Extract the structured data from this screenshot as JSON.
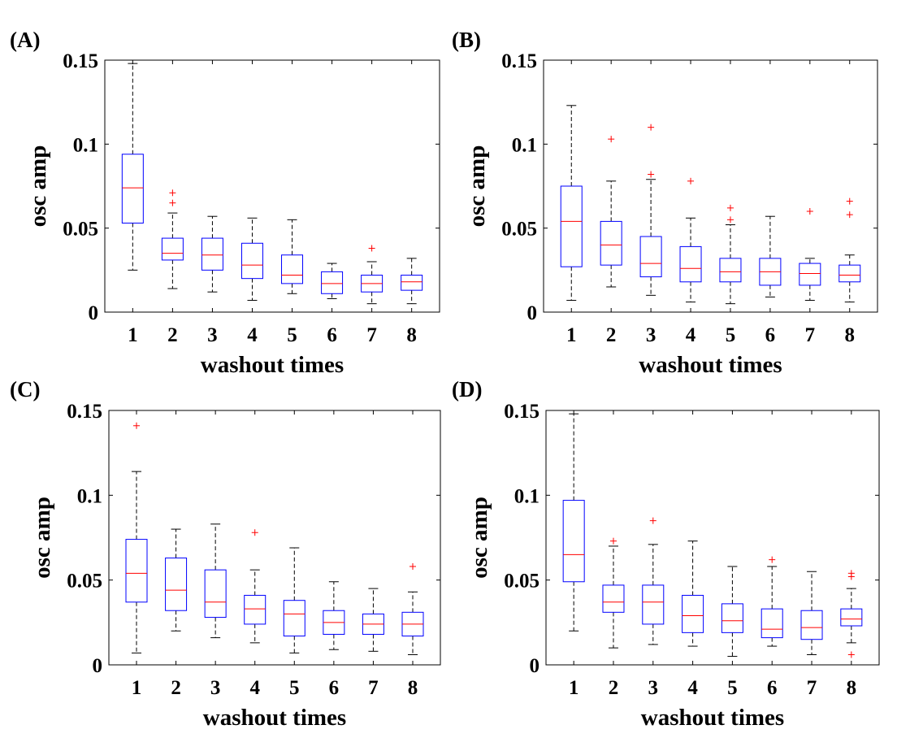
{
  "colors": {
    "box": "#0000ff",
    "median": "#ff0000",
    "outlier": "#ff0000",
    "whisker": "#000000",
    "axes": "#000000"
  },
  "chart_data": [
    {
      "type": "boxplot",
      "panel_label": "(A)",
      "xlabel": "washout times",
      "ylabel": "osc amp",
      "categories": [
        "1",
        "2",
        "3",
        "4",
        "5",
        "6",
        "7",
        "8"
      ],
      "ylim": [
        0,
        0.15
      ],
      "yticks": [
        0,
        0.05,
        0.1,
        0.15
      ],
      "ytick_labels": [
        "0",
        "0.05",
        "0.1",
        "0.15"
      ],
      "boxes": [
        {
          "lower_whisker": 0.025,
          "q1": 0.053,
          "median": 0.074,
          "q3": 0.094,
          "upper_whisker": 0.148,
          "outliers": []
        },
        {
          "lower_whisker": 0.014,
          "q1": 0.031,
          "median": 0.035,
          "q3": 0.044,
          "upper_whisker": 0.059,
          "outliers": [
            0.065,
            0.071
          ]
        },
        {
          "lower_whisker": 0.012,
          "q1": 0.025,
          "median": 0.034,
          "q3": 0.044,
          "upper_whisker": 0.057,
          "outliers": []
        },
        {
          "lower_whisker": 0.007,
          "q1": 0.02,
          "median": 0.028,
          "q3": 0.041,
          "upper_whisker": 0.056,
          "outliers": []
        },
        {
          "lower_whisker": 0.011,
          "q1": 0.017,
          "median": 0.022,
          "q3": 0.034,
          "upper_whisker": 0.055,
          "outliers": []
        },
        {
          "lower_whisker": 0.008,
          "q1": 0.011,
          "median": 0.017,
          "q3": 0.024,
          "upper_whisker": 0.029,
          "outliers": []
        },
        {
          "lower_whisker": 0.005,
          "q1": 0.012,
          "median": 0.017,
          "q3": 0.022,
          "upper_whisker": 0.03,
          "outliers": [
            0.038
          ]
        },
        {
          "lower_whisker": 0.005,
          "q1": 0.013,
          "median": 0.018,
          "q3": 0.022,
          "upper_whisker": 0.032,
          "outliers": []
        }
      ]
    },
    {
      "type": "boxplot",
      "panel_label": "(B)",
      "xlabel": "washout times",
      "ylabel": "osc amp",
      "categories": [
        "1",
        "2",
        "3",
        "4",
        "5",
        "6",
        "7",
        "8"
      ],
      "ylim": [
        0,
        0.15
      ],
      "yticks": [
        0,
        0.05,
        0.1,
        0.15
      ],
      "ytick_labels": [
        "0",
        "0.05",
        "0.1",
        "0.15"
      ],
      "boxes": [
        {
          "lower_whisker": 0.007,
          "q1": 0.027,
          "median": 0.054,
          "q3": 0.075,
          "upper_whisker": 0.123,
          "outliers": []
        },
        {
          "lower_whisker": 0.015,
          "q1": 0.028,
          "median": 0.04,
          "q3": 0.054,
          "upper_whisker": 0.078,
          "outliers": [
            0.103
          ]
        },
        {
          "lower_whisker": 0.01,
          "q1": 0.021,
          "median": 0.029,
          "q3": 0.045,
          "upper_whisker": 0.079,
          "outliers": [
            0.082,
            0.11
          ]
        },
        {
          "lower_whisker": 0.006,
          "q1": 0.018,
          "median": 0.026,
          "q3": 0.039,
          "upper_whisker": 0.056,
          "outliers": [
            0.078
          ]
        },
        {
          "lower_whisker": 0.005,
          "q1": 0.018,
          "median": 0.024,
          "q3": 0.032,
          "upper_whisker": 0.052,
          "outliers": [
            0.055,
            0.062
          ]
        },
        {
          "lower_whisker": 0.009,
          "q1": 0.016,
          "median": 0.024,
          "q3": 0.032,
          "upper_whisker": 0.057,
          "outliers": []
        },
        {
          "lower_whisker": 0.007,
          "q1": 0.016,
          "median": 0.023,
          "q3": 0.029,
          "upper_whisker": 0.032,
          "outliers": [
            0.06
          ]
        },
        {
          "lower_whisker": 0.006,
          "q1": 0.018,
          "median": 0.022,
          "q3": 0.028,
          "upper_whisker": 0.034,
          "outliers": [
            0.058,
            0.066
          ]
        }
      ]
    },
    {
      "type": "boxplot",
      "panel_label": "(C)",
      "xlabel": "washout times",
      "ylabel": "osc amp",
      "categories": [
        "1",
        "2",
        "3",
        "4",
        "5",
        "6",
        "7",
        "8"
      ],
      "ylim": [
        0,
        0.15
      ],
      "yticks": [
        0,
        0.05,
        0.1,
        0.15
      ],
      "ytick_labels": [
        "0",
        "0.05",
        "0.1",
        "0.15"
      ],
      "boxes": [
        {
          "lower_whisker": 0.007,
          "q1": 0.037,
          "median": 0.054,
          "q3": 0.074,
          "upper_whisker": 0.114,
          "outliers": [
            0.141
          ]
        },
        {
          "lower_whisker": 0.02,
          "q1": 0.032,
          "median": 0.044,
          "q3": 0.063,
          "upper_whisker": 0.08,
          "outliers": []
        },
        {
          "lower_whisker": 0.016,
          "q1": 0.028,
          "median": 0.037,
          "q3": 0.056,
          "upper_whisker": 0.083,
          "outliers": []
        },
        {
          "lower_whisker": 0.013,
          "q1": 0.024,
          "median": 0.033,
          "q3": 0.041,
          "upper_whisker": 0.056,
          "outliers": [
            0.078
          ]
        },
        {
          "lower_whisker": 0.007,
          "q1": 0.017,
          "median": 0.03,
          "q3": 0.038,
          "upper_whisker": 0.069,
          "outliers": []
        },
        {
          "lower_whisker": 0.009,
          "q1": 0.018,
          "median": 0.025,
          "q3": 0.032,
          "upper_whisker": 0.049,
          "outliers": []
        },
        {
          "lower_whisker": 0.008,
          "q1": 0.018,
          "median": 0.024,
          "q3": 0.03,
          "upper_whisker": 0.045,
          "outliers": []
        },
        {
          "lower_whisker": 0.006,
          "q1": 0.017,
          "median": 0.024,
          "q3": 0.031,
          "upper_whisker": 0.043,
          "outliers": [
            0.058
          ]
        }
      ]
    },
    {
      "type": "boxplot",
      "panel_label": "(D)",
      "xlabel": "washout times",
      "ylabel": "osc amp",
      "categories": [
        "1",
        "2",
        "3",
        "4",
        "5",
        "6",
        "7",
        "8"
      ],
      "ylim": [
        0,
        0.15
      ],
      "yticks": [
        0,
        0.05,
        0.1,
        0.15
      ],
      "ytick_labels": [
        "0",
        "0.05",
        "0.1",
        "0.15"
      ],
      "boxes": [
        {
          "lower_whisker": 0.02,
          "q1": 0.049,
          "median": 0.065,
          "q3": 0.097,
          "upper_whisker": 0.148,
          "outliers": []
        },
        {
          "lower_whisker": 0.01,
          "q1": 0.031,
          "median": 0.037,
          "q3": 0.047,
          "upper_whisker": 0.07,
          "outliers": [
            0.073
          ]
        },
        {
          "lower_whisker": 0.012,
          "q1": 0.024,
          "median": 0.037,
          "q3": 0.047,
          "upper_whisker": 0.071,
          "outliers": [
            0.085
          ]
        },
        {
          "lower_whisker": 0.011,
          "q1": 0.019,
          "median": 0.029,
          "q3": 0.041,
          "upper_whisker": 0.073,
          "outliers": []
        },
        {
          "lower_whisker": 0.005,
          "q1": 0.019,
          "median": 0.026,
          "q3": 0.036,
          "upper_whisker": 0.058,
          "outliers": []
        },
        {
          "lower_whisker": 0.011,
          "q1": 0.016,
          "median": 0.021,
          "q3": 0.033,
          "upper_whisker": 0.058,
          "outliers": [
            0.062
          ]
        },
        {
          "lower_whisker": 0.006,
          "q1": 0.015,
          "median": 0.022,
          "q3": 0.032,
          "upper_whisker": 0.055,
          "outliers": []
        },
        {
          "lower_whisker": 0.013,
          "q1": 0.023,
          "median": 0.027,
          "q3": 0.033,
          "upper_whisker": 0.045,
          "outliers": [
            0.006,
            0.052,
            0.054
          ]
        }
      ]
    }
  ]
}
